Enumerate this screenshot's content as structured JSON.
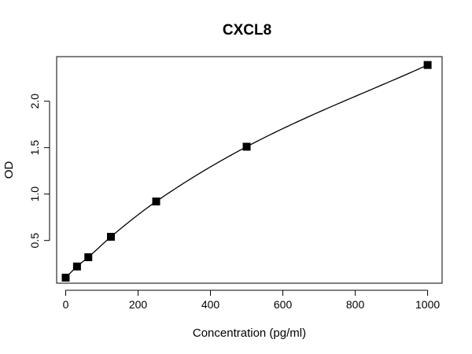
{
  "chart_data": {
    "type": "scatter",
    "title": "CXCL8",
    "xlabel": "Concentration (pg/ml)",
    "ylabel": "OD",
    "xlim": [
      -25,
      1040
    ],
    "ylim": [
      0.04,
      2.48
    ],
    "x_ticks": [
      0,
      200,
      400,
      600,
      800,
      1000
    ],
    "x_tick_labels": [
      "0",
      "200",
      "400",
      "600",
      "800",
      "1000"
    ],
    "y_ticks": [
      0.5,
      1.0,
      1.5,
      2.0
    ],
    "y_tick_labels": [
      "0.5",
      "1.0",
      "1.5",
      "2.0"
    ],
    "grid": false,
    "legend": "none",
    "points": {
      "x": [
        0,
        31.25,
        62.5,
        125,
        250,
        500,
        1000
      ],
      "y": [
        0.1,
        0.22,
        0.32,
        0.54,
        0.92,
        1.51,
        2.39
      ]
    },
    "curve": "smooth fit through points",
    "marker": "filled-square",
    "color": "#000000"
  }
}
